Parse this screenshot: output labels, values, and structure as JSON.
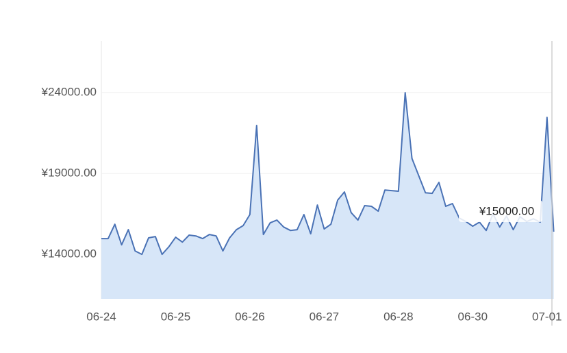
{
  "chart_data": {
    "type": "area",
    "categories": [
      "06-24",
      null,
      null,
      null,
      null,
      null,
      null,
      null,
      null,
      null,
      null,
      "06-25",
      null,
      null,
      null,
      null,
      null,
      null,
      null,
      null,
      null,
      null,
      "06-26",
      null,
      null,
      null,
      null,
      null,
      null,
      null,
      null,
      null,
      null,
      "06-27",
      null,
      null,
      null,
      null,
      null,
      null,
      null,
      null,
      null,
      null,
      "06-28",
      null,
      null,
      null,
      null,
      null,
      null,
      null,
      null,
      null,
      null,
      "06-30",
      null,
      null,
      null,
      null,
      null,
      null,
      null,
      null,
      null,
      null,
      "07-01",
      null
    ],
    "values": [
      14975,
      14975,
      15860,
      14590,
      15525,
      14210,
      14000,
      15020,
      15100,
      14000,
      14470,
      15060,
      14760,
      15190,
      15140,
      14975,
      15230,
      15140,
      14210,
      15020,
      15525,
      15780,
      16460,
      21970,
      15230,
      15950,
      16120,
      15690,
      15480,
      15525,
      16460,
      15270,
      17050,
      15570,
      15860,
      17350,
      17860,
      16580,
      16120,
      17010,
      16970,
      16670,
      17980,
      17940,
      17900,
      24000,
      19930,
      18870,
      17810,
      17770,
      18450,
      16970,
      17140,
      16250,
      16030,
      15740,
      15990,
      15480,
      16500,
      15690,
      16370,
      15525,
      16330,
      16030,
      16200,
      15990,
      22470,
      15400
    ],
    "color": "#4a72b5",
    "fill": "#d7e6f8",
    "ylim": [
      11250,
      27180
    ],
    "yticks": [
      {
        "value": 14000,
        "label": "¥14000.00"
      },
      {
        "value": 19000,
        "label": "¥19000.00"
      },
      {
        "value": 24000,
        "label": "¥24000.00"
      }
    ],
    "grid": true,
    "tooltip": "¥15000.00"
  }
}
